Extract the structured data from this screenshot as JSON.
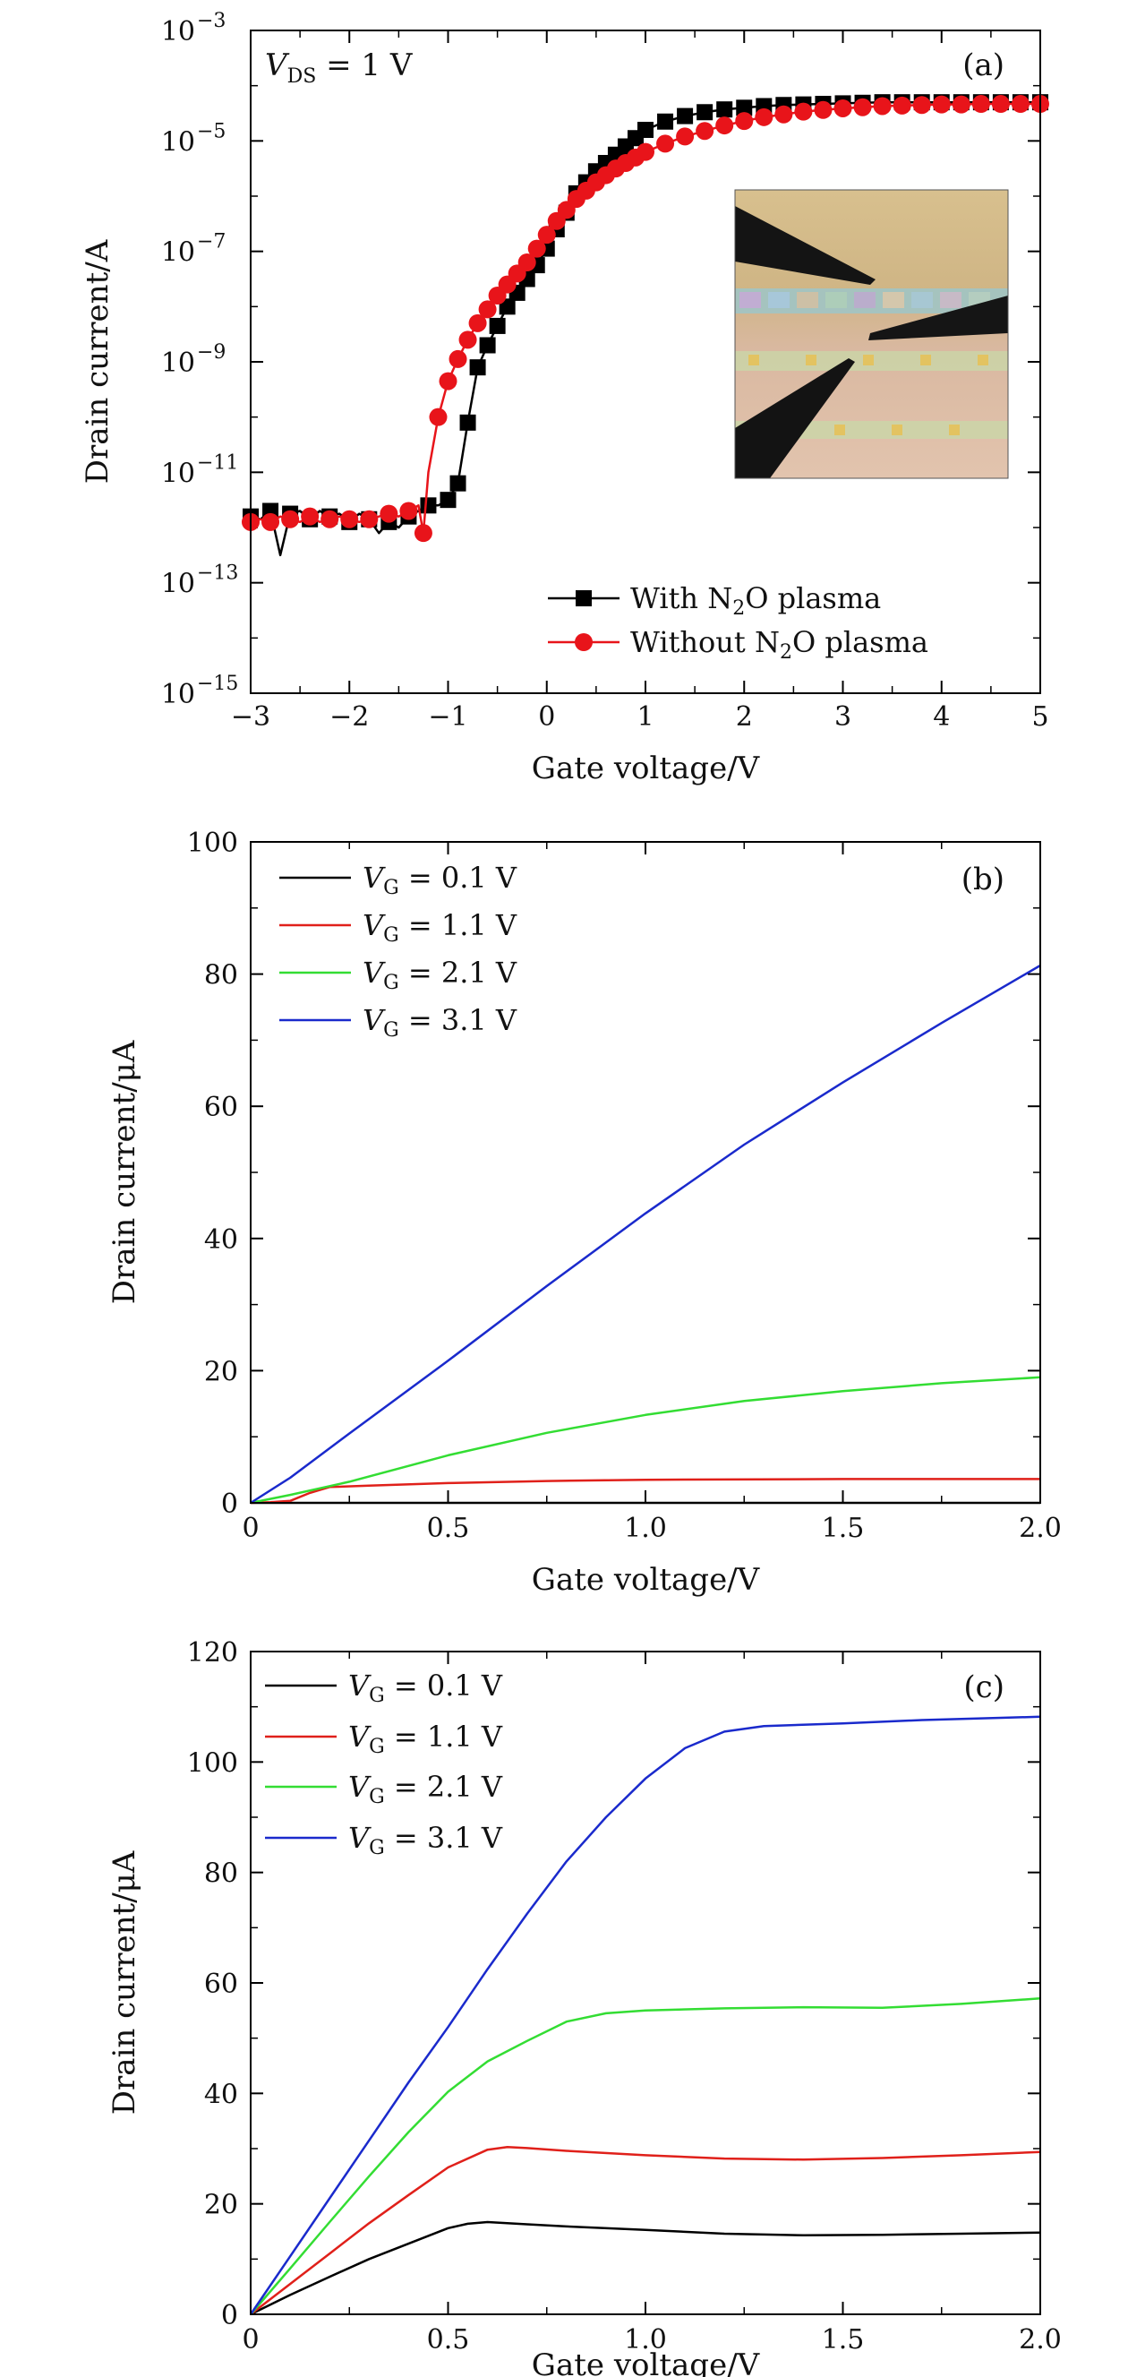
{
  "chart_data": [
    {
      "type": "line",
      "panel_label": "(a)",
      "annotation": {
        "main": "V",
        "sub": "DS",
        "rest": " = 1  V"
      },
      "xlabel": "Gate voltage/V",
      "ylabel": "Drain current/A",
      "yscale": "log",
      "xlim": [
        -3,
        5
      ],
      "ylim_exp": [
        -15,
        -3
      ],
      "xticks": [
        -3,
        -2,
        -1,
        0,
        1,
        2,
        3,
        4,
        5
      ],
      "xtick_labels": [
        "−3",
        "−2",
        "−1",
        "0",
        "1",
        "2",
        "3",
        "4",
        "5"
      ],
      "yticks_exp": [
        -15,
        -13,
        -11,
        -9,
        -7,
        -5,
        -3
      ],
      "ytick_labels": [
        "−15",
        "−13",
        "−11",
        "−9",
        "−7",
        "−5",
        "−3"
      ],
      "ytick_base": "10",
      "legend_position": "bottom-right",
      "inset": "optical micrograph of probed device array",
      "series": [
        {
          "name_parts": [
            "With N",
            "2",
            "O plasma"
          ],
          "color": "#000000",
          "marker": "square",
          "x": [
            -3.0,
            -2.9,
            -2.8,
            -2.7,
            -2.6,
            -2.5,
            -2.4,
            -2.3,
            -2.2,
            -2.1,
            -2.0,
            -1.9,
            -1.8,
            -1.7,
            -1.6,
            -1.5,
            -1.4,
            -1.3,
            -1.2,
            -1.1,
            -1.0,
            -0.9,
            -0.8,
            -0.7,
            -0.6,
            -0.5,
            -0.4,
            -0.3,
            -0.2,
            -0.1,
            0.0,
            0.1,
            0.2,
            0.3,
            0.4,
            0.5,
            0.6,
            0.7,
            0.8,
            0.9,
            1.0,
            1.2,
            1.4,
            1.6,
            1.8,
            2.0,
            2.2,
            2.4,
            2.6,
            2.8,
            3.0,
            3.2,
            3.4,
            3.6,
            3.8,
            4.0,
            4.2,
            4.4,
            4.6,
            4.8,
            5.0
          ],
          "log10_y": [
            -11.8,
            -11.85,
            -11.7,
            -12.5,
            -11.75,
            -11.7,
            -11.85,
            -11.7,
            -11.8,
            -11.75,
            -11.9,
            -11.75,
            -11.85,
            -12.1,
            -11.9,
            -12.0,
            -11.8,
            -11.7,
            -11.6,
            -11.6,
            -11.5,
            -11.2,
            -10.1,
            -9.1,
            -8.7,
            -8.35,
            -8.0,
            -7.75,
            -7.5,
            -7.25,
            -6.95,
            -6.6,
            -6.3,
            -5.95,
            -5.75,
            -5.55,
            -5.4,
            -5.25,
            -5.1,
            -4.95,
            -4.8,
            -4.65,
            -4.55,
            -4.48,
            -4.43,
            -4.4,
            -4.37,
            -4.35,
            -4.34,
            -4.33,
            -4.32,
            -4.31,
            -4.3,
            -4.3,
            -4.3,
            -4.3,
            -4.3,
            -4.3,
            -4.3,
            -4.3,
            -4.3
          ],
          "markers_x": [
            -3.0,
            -2.8,
            -2.6,
            -2.4,
            -2.2,
            -2.0,
            -1.8,
            -1.6,
            -1.4,
            -1.2,
            -1.0,
            -0.9,
            -0.8,
            -0.7,
            -0.6,
            -0.5,
            -0.4,
            -0.3,
            -0.2,
            -0.1,
            0.0,
            0.1,
            0.2,
            0.3,
            0.4,
            0.5,
            0.6,
            0.7,
            0.8,
            0.9,
            1.0,
            1.2,
            1.4,
            1.6,
            1.8,
            2.0,
            2.2,
            2.4,
            2.6,
            2.8,
            3.0,
            3.2,
            3.4,
            3.6,
            3.8,
            4.0,
            4.2,
            4.4,
            4.6,
            4.8,
            5.0
          ]
        },
        {
          "name_parts": [
            "Without N",
            "2",
            "O plasma"
          ],
          "color": "#e8141a",
          "marker": "circle",
          "x": [
            -3.0,
            -2.9,
            -2.8,
            -2.7,
            -2.6,
            -2.5,
            -2.4,
            -2.3,
            -2.2,
            -2.1,
            -2.0,
            -1.9,
            -1.8,
            -1.7,
            -1.6,
            -1.5,
            -1.4,
            -1.3,
            -1.25,
            -1.2,
            -1.1,
            -1.0,
            -0.9,
            -0.8,
            -0.7,
            -0.6,
            -0.5,
            -0.4,
            -0.3,
            -0.2,
            -0.1,
            0.0,
            0.1,
            0.2,
            0.3,
            0.4,
            0.5,
            0.6,
            0.7,
            0.8,
            0.9,
            1.0,
            1.2,
            1.4,
            1.6,
            1.8,
            2.0,
            2.2,
            2.4,
            2.6,
            2.8,
            3.0,
            3.2,
            3.4,
            3.6,
            3.8,
            4.0,
            4.2,
            4.4,
            4.6,
            4.8,
            5.0
          ],
          "log10_y": [
            -11.9,
            -11.85,
            -11.9,
            -11.8,
            -11.85,
            -11.9,
            -11.8,
            -11.9,
            -11.85,
            -11.8,
            -11.85,
            -11.9,
            -11.85,
            -11.8,
            -11.75,
            -11.8,
            -11.7,
            -11.6,
            -12.1,
            -11.0,
            -10.0,
            -9.35,
            -8.95,
            -8.6,
            -8.3,
            -8.05,
            -7.8,
            -7.6,
            -7.4,
            -7.2,
            -6.95,
            -6.7,
            -6.45,
            -6.25,
            -6.05,
            -5.9,
            -5.75,
            -5.62,
            -5.5,
            -5.4,
            -5.3,
            -5.2,
            -5.05,
            -4.92,
            -4.82,
            -4.72,
            -4.64,
            -4.57,
            -4.52,
            -4.47,
            -4.44,
            -4.41,
            -4.39,
            -4.37,
            -4.36,
            -4.35,
            -4.34,
            -4.34,
            -4.33,
            -4.33,
            -4.33,
            -4.33
          ],
          "markers_x": [
            -3.0,
            -2.8,
            -2.6,
            -2.4,
            -2.2,
            -2.0,
            -1.8,
            -1.6,
            -1.4,
            -1.25,
            -1.1,
            -1.0,
            -0.9,
            -0.8,
            -0.7,
            -0.6,
            -0.5,
            -0.4,
            -0.3,
            -0.2,
            -0.1,
            0.0,
            0.1,
            0.2,
            0.3,
            0.4,
            0.5,
            0.6,
            0.7,
            0.8,
            0.9,
            1.0,
            1.2,
            1.4,
            1.6,
            1.8,
            2.0,
            2.2,
            2.4,
            2.6,
            2.8,
            3.0,
            3.2,
            3.4,
            3.6,
            3.8,
            4.0,
            4.2,
            4.4,
            4.6,
            4.8,
            5.0
          ]
        }
      ]
    },
    {
      "type": "line",
      "panel_label": "(b)",
      "xlabel": "Gate voltage/V",
      "ylabel": "Drain current/μA",
      "xlim": [
        0,
        2
      ],
      "ylim": [
        0,
        100
      ],
      "xticks": [
        0,
        0.5,
        1.0,
        1.5,
        2.0
      ],
      "xtick_labels": [
        "0",
        "0.5",
        "1.0",
        "1.5",
        "2.0"
      ],
      "yticks": [
        0,
        20,
        40,
        60,
        80,
        100
      ],
      "ytick_labels": [
        "0",
        "20",
        "40",
        "60",
        "80",
        "100"
      ],
      "legend_position": "top-left",
      "series": [
        {
          "name_parts": [
            "V",
            "G",
            " = 0.1  V"
          ],
          "color": "#000000",
          "x": [
            0,
            2.0
          ],
          "y": [
            0,
            0
          ]
        },
        {
          "name_parts": [
            "V",
            "G",
            " = 1.1  V"
          ],
          "color": "#e0201a",
          "x": [
            0,
            0.05,
            0.1,
            0.15,
            0.2,
            0.3,
            0.5,
            0.75,
            1.0,
            1.5,
            2.0
          ],
          "y": [
            0,
            0.1,
            0.3,
            1.5,
            2.4,
            2.6,
            3.0,
            3.3,
            3.5,
            3.6,
            3.6
          ]
        },
        {
          "name_parts": [
            "V",
            "G",
            " = 2.1  V"
          ],
          "color": "#33dd33",
          "x": [
            0,
            0.1,
            0.25,
            0.5,
            0.75,
            1.0,
            1.25,
            1.5,
            1.75,
            2.0
          ],
          "y": [
            0,
            1.2,
            3.2,
            7.2,
            10.6,
            13.3,
            15.4,
            16.9,
            18.1,
            19.0
          ]
        },
        {
          "name_parts": [
            "V",
            "G",
            " = 3.1  V"
          ],
          "color": "#1a2acc",
          "x": [
            0,
            0.1,
            0.25,
            0.5,
            0.75,
            1.0,
            1.25,
            1.5,
            1.75,
            2.0
          ],
          "y": [
            0,
            3.8,
            10.5,
            21.5,
            32.8,
            43.8,
            54.2,
            63.6,
            72.6,
            81.3
          ]
        }
      ]
    },
    {
      "type": "line",
      "panel_label": "(c)",
      "xlabel": "Gate voltage/V",
      "ylabel": "Drain current/μA",
      "xlim": [
        0,
        2
      ],
      "ylim": [
        0,
        120
      ],
      "xticks": [
        0,
        0.5,
        1.0,
        1.5,
        2.0
      ],
      "xtick_labels": [
        "0",
        "0.5",
        "1.0",
        "1.5",
        "2.0"
      ],
      "yticks": [
        0,
        20,
        40,
        60,
        80,
        100,
        120
      ],
      "ytick_labels": [
        "0",
        "20",
        "40",
        "60",
        "80",
        "100",
        "120"
      ],
      "legend_position": "top-left",
      "series": [
        {
          "name_parts": [
            "V",
            "G",
            " = 0.1  V"
          ],
          "color": "#000000",
          "x": [
            0,
            0.1,
            0.2,
            0.3,
            0.4,
            0.5,
            0.55,
            0.6,
            0.7,
            0.8,
            1.0,
            1.2,
            1.4,
            1.6,
            1.8,
            2.0
          ],
          "y": [
            0,
            3.5,
            6.8,
            10.0,
            12.8,
            15.6,
            16.4,
            16.7,
            16.3,
            15.9,
            15.3,
            14.6,
            14.3,
            14.4,
            14.6,
            14.8
          ]
        },
        {
          "name_parts": [
            "V",
            "G",
            " = 1.1  V"
          ],
          "color": "#e0201a",
          "x": [
            0,
            0.1,
            0.2,
            0.3,
            0.4,
            0.5,
            0.6,
            0.65,
            0.7,
            0.8,
            1.0,
            1.2,
            1.4,
            1.6,
            1.8,
            2.0
          ],
          "y": [
            0,
            5.5,
            11.0,
            16.5,
            21.6,
            26.6,
            29.8,
            30.3,
            30.1,
            29.6,
            28.8,
            28.2,
            28.0,
            28.3,
            28.8,
            29.4
          ]
        },
        {
          "name_parts": [
            "V",
            "G",
            " = 2.1  V"
          ],
          "color": "#33dd33",
          "x": [
            0,
            0.1,
            0.2,
            0.3,
            0.4,
            0.5,
            0.6,
            0.7,
            0.8,
            0.9,
            1.0,
            1.2,
            1.4,
            1.6,
            1.8,
            2.0
          ],
          "y": [
            0,
            8.3,
            16.7,
            25.0,
            33.0,
            40.3,
            45.8,
            49.5,
            53.0,
            54.5,
            55.0,
            55.4,
            55.6,
            55.5,
            56.2,
            57.2
          ]
        },
        {
          "name_parts": [
            "V",
            "G",
            " = 3.1  V"
          ],
          "color": "#1a2acc",
          "x": [
            0,
            0.1,
            0.2,
            0.3,
            0.4,
            0.5,
            0.6,
            0.7,
            0.8,
            0.9,
            1.0,
            1.1,
            1.2,
            1.3,
            1.5,
            1.7,
            1.9,
            2.0
          ],
          "y": [
            0,
            10.5,
            21.0,
            31.5,
            42.0,
            52.0,
            62.5,
            72.5,
            82.0,
            90.0,
            97.0,
            102.5,
            105.5,
            106.5,
            107.0,
            107.6,
            108.0,
            108.2
          ]
        }
      ]
    }
  ]
}
